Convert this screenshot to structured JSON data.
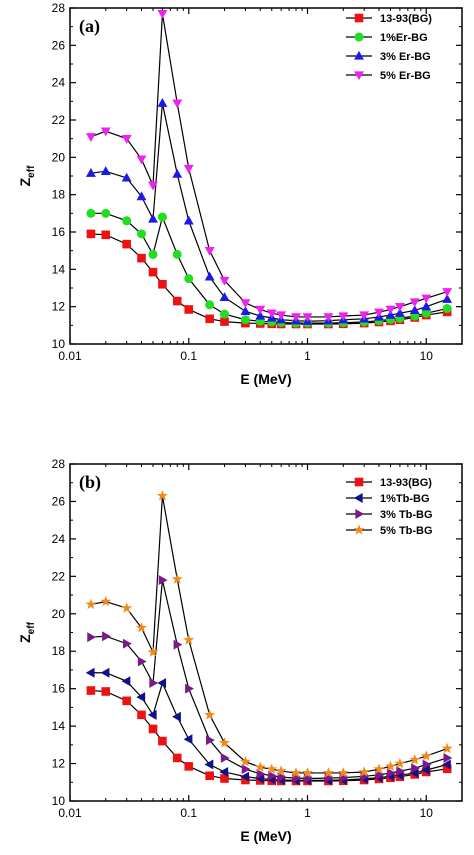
{
  "chart_data": [
    {
      "type": "line",
      "panel_label": "(a)",
      "xlabel": "E (MeV)",
      "ylabel_main": "Z",
      "ylabel_sub": "eff",
      "xscale": "log",
      "xlim": [
        0.01,
        20
      ],
      "ylim": [
        10,
        28
      ],
      "xticks": [
        0.01,
        0.1,
        1,
        10
      ],
      "xtick_labels": [
        "0.01",
        "0.1",
        "1",
        "10"
      ],
      "yticks": [
        10,
        12,
        14,
        16,
        18,
        20,
        22,
        24,
        26,
        28
      ],
      "ytick_labels": [
        "10",
        "12",
        "14",
        "16",
        "18",
        "20",
        "22",
        "24",
        "26",
        "28"
      ],
      "grid": false,
      "legend_position": "top-right",
      "x": [
        0.015,
        0.02,
        0.03,
        0.04,
        0.05,
        0.06,
        0.08,
        0.1,
        0.15,
        0.2,
        0.3,
        0.4,
        0.5,
        0.6,
        0.8,
        1,
        1.5,
        2,
        3,
        4,
        5,
        6,
        8,
        10,
        15
      ],
      "series": [
        {
          "name": "13-93(BG)",
          "marker": "square",
          "color": "#ee1111",
          "values": [
            15.9,
            15.85,
            15.35,
            14.6,
            13.85,
            13.2,
            12.3,
            11.85,
            11.35,
            11.2,
            11.12,
            11.1,
            11.08,
            11.07,
            11.07,
            11.07,
            11.07,
            11.08,
            11.12,
            11.18,
            11.24,
            11.3,
            11.42,
            11.55,
            11.72
          ]
        },
        {
          "name": "1%Er-BG",
          "marker": "circle",
          "color": "#22dd22",
          "values": [
            17.0,
            17.0,
            16.6,
            15.9,
            14.8,
            16.8,
            14.8,
            13.5,
            12.1,
            11.6,
            11.3,
            11.22,
            11.18,
            11.15,
            11.12,
            11.12,
            11.12,
            11.14,
            11.18,
            11.25,
            11.32,
            11.38,
            11.5,
            11.65,
            11.9
          ]
        },
        {
          "name": "3% Er-BG",
          "marker": "triangle-up",
          "color": "#1a1aee",
          "values": [
            19.15,
            19.25,
            18.9,
            17.9,
            16.7,
            22.9,
            19.1,
            16.6,
            13.6,
            12.5,
            11.75,
            11.5,
            11.4,
            11.3,
            11.25,
            11.22,
            11.25,
            11.3,
            11.35,
            11.45,
            11.55,
            11.65,
            11.8,
            12.0,
            12.4
          ]
        },
        {
          "name": "5% Er-BG",
          "marker": "triangle-down",
          "color": "#ee22ee",
          "values": [
            21.1,
            21.4,
            21.0,
            19.9,
            18.5,
            27.7,
            22.9,
            19.4,
            15.0,
            13.4,
            12.2,
            11.85,
            11.65,
            11.55,
            11.45,
            11.45,
            11.45,
            11.5,
            11.55,
            11.7,
            11.85,
            12.0,
            12.25,
            12.45,
            12.8
          ]
        }
      ]
    },
    {
      "type": "line",
      "panel_label": "(b)",
      "xlabel": "E (MeV)",
      "ylabel_main": "Z",
      "ylabel_sub": "eff",
      "xscale": "log",
      "xlim": [
        0.01,
        20
      ],
      "ylim": [
        10,
        28
      ],
      "xticks": [
        0.01,
        0.1,
        1,
        10
      ],
      "xtick_labels": [
        "0.01",
        "0.1",
        "1",
        "10"
      ],
      "yticks": [
        10,
        12,
        14,
        16,
        18,
        20,
        22,
        24,
        26,
        28
      ],
      "ytick_labels": [
        "10",
        "12",
        "14",
        "16",
        "18",
        "20",
        "22",
        "24",
        "26",
        "28"
      ],
      "grid": false,
      "legend_position": "top-right",
      "x": [
        0.015,
        0.02,
        0.03,
        0.04,
        0.05,
        0.06,
        0.08,
        0.1,
        0.15,
        0.2,
        0.3,
        0.4,
        0.5,
        0.6,
        0.8,
        1,
        1.5,
        2,
        3,
        4,
        5,
        6,
        8,
        10,
        15
      ],
      "series": [
        {
          "name": "13-93(BG)",
          "marker": "square",
          "color": "#ee1111",
          "values": [
            15.9,
            15.85,
            15.35,
            14.6,
            13.85,
            13.2,
            12.3,
            11.85,
            11.35,
            11.2,
            11.12,
            11.1,
            11.08,
            11.07,
            11.07,
            11.07,
            11.07,
            11.08,
            11.12,
            11.18,
            11.24,
            11.3,
            11.42,
            11.55,
            11.72
          ]
        },
        {
          "name": "1%Tb-BG",
          "marker": "triangle-left",
          "color": "#11118a",
          "values": [
            16.85,
            16.85,
            16.4,
            15.55,
            14.6,
            16.3,
            14.5,
            13.3,
            11.95,
            11.55,
            11.3,
            11.2,
            11.15,
            11.12,
            11.1,
            11.1,
            11.1,
            11.12,
            11.18,
            11.25,
            11.32,
            11.38,
            11.5,
            11.65,
            11.95
          ]
        },
        {
          "name": "3% Tb-BG",
          "marker": "triangle-right",
          "color": "#7a1a8a",
          "values": [
            18.75,
            18.8,
            18.4,
            17.45,
            16.3,
            21.8,
            18.35,
            16.0,
            13.25,
            12.3,
            11.7,
            11.45,
            11.35,
            11.28,
            11.22,
            11.2,
            11.22,
            11.25,
            11.32,
            11.4,
            11.5,
            11.6,
            11.75,
            11.95,
            12.3
          ]
        },
        {
          "name": "5% Tb-BG",
          "marker": "star",
          "color": "#f08a1a",
          "values": [
            20.5,
            20.65,
            20.3,
            19.25,
            17.95,
            26.3,
            21.85,
            18.6,
            14.6,
            13.1,
            12.1,
            11.8,
            11.7,
            11.6,
            11.5,
            11.5,
            11.5,
            11.5,
            11.55,
            11.7,
            11.85,
            12.0,
            12.2,
            12.4,
            12.8
          ]
        }
      ]
    }
  ]
}
